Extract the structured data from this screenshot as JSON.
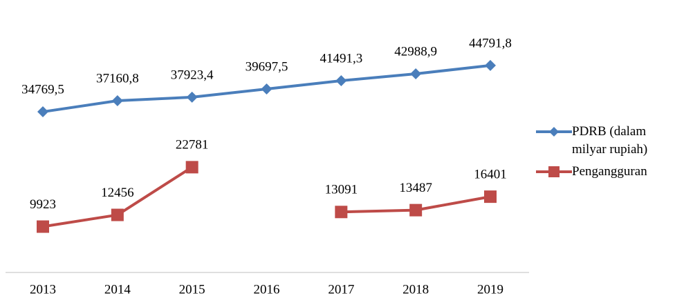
{
  "chart_data": {
    "type": "line",
    "categories": [
      "2013",
      "2014",
      "2015",
      "2016",
      "2017",
      "2018",
      "2019"
    ],
    "series": [
      {
        "name": "PDRB (dalam milyar rupiah)",
        "color": "#4a7ebb",
        "marker": "diamond",
        "values": [
          34769.5,
          37160.8,
          37923.4,
          39697.5,
          41491.3,
          42988.9,
          44791.8
        ],
        "value_labels": [
          "34769,5",
          "37160,8",
          "37923,4",
          "39697,5",
          "41491,3",
          "42988,9",
          "44791,8"
        ]
      },
      {
        "name": "Pengangguran",
        "color": "#be4b48",
        "marker": "square",
        "values": [
          9923,
          12456,
          22781,
          null,
          13091,
          13487,
          16401
        ]
      }
    ],
    "ylim": [
      0,
      50000
    ],
    "legend": "right"
  }
}
